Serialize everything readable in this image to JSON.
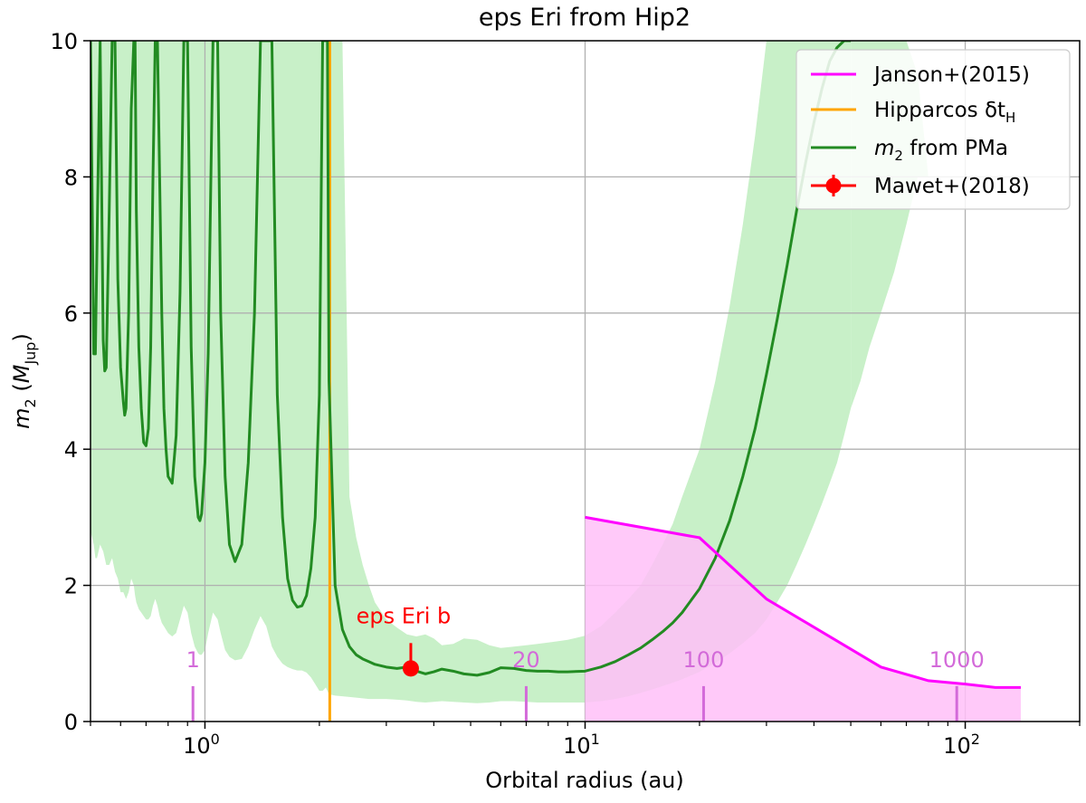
{
  "chart_data": {
    "type": "line",
    "title": "eps Eri from Hip2",
    "xlabel": "Orbital radius (au)",
    "ylabel": {
      "base": "m",
      "sub": "2",
      "paren_open": " (",
      "M": "M",
      "M_sub": "Jup",
      "paren_close": ")"
    },
    "xscale": "log",
    "xlim": [
      0.5,
      200
    ],
    "ylim": [
      0,
      10
    ],
    "grid": true,
    "legend_position": "top-right",
    "x_ticks": [
      {
        "pos": 1,
        "base": "10",
        "exp": "0"
      },
      {
        "pos": 10,
        "base": "10",
        "exp": "1"
      },
      {
        "pos": 100,
        "base": "10",
        "exp": "2"
      }
    ],
    "y_ticks": [
      "0",
      "2",
      "4",
      "6",
      "8",
      "10"
    ],
    "legend": [
      {
        "key": "janson",
        "text": "Janson+(2015)"
      },
      {
        "key": "hip",
        "text": "Hipparcos δt",
        "sub": "H"
      },
      {
        "key": "pma",
        "pre": "m",
        "sub": "2",
        "text": " from PMa"
      },
      {
        "key": "mawet",
        "text": "Mawet+(2018)"
      }
    ],
    "colors": {
      "pma": "#228b22",
      "band": "#c8f0c8",
      "janson": "#ff00ff",
      "janson_fill": "#ffbff8",
      "hipparcos": "#ffa500",
      "mawet": "#ff0000",
      "period": "#d36ad9",
      "grid": "#b0b0b0"
    },
    "series": [
      {
        "name": "m2 from PMa",
        "key": "pma",
        "x": [
          0.5,
          0.51,
          0.515,
          0.52,
          0.53,
          0.54,
          0.545,
          0.55,
          0.56,
          0.57,
          0.58,
          0.59,
          0.6,
          0.61,
          0.615,
          0.62,
          0.63,
          0.64,
          0.65,
          0.655,
          0.66,
          0.67,
          0.68,
          0.69,
          0.7,
          0.71,
          0.72,
          0.73,
          0.74,
          0.75,
          0.76,
          0.77,
          0.78,
          0.79,
          0.8,
          0.82,
          0.84,
          0.86,
          0.88,
          0.9,
          0.92,
          0.94,
          0.96,
          0.97,
          0.98,
          1.0,
          1.02,
          1.05,
          1.08,
          1.1,
          1.13,
          1.16,
          1.2,
          1.25,
          1.3,
          1.35,
          1.4,
          1.45,
          1.5,
          1.55,
          1.6,
          1.65,
          1.7,
          1.75,
          1.8,
          1.85,
          1.9,
          1.95,
          2.0,
          2.04,
          2.08,
          2.1,
          2.12,
          2.2,
          2.3,
          2.4,
          2.5,
          2.6,
          2.7,
          2.8,
          3.0,
          3.2,
          3.4,
          3.6,
          3.8,
          4.0,
          4.2,
          4.5,
          4.8,
          5.2,
          5.6,
          6.0,
          6.5,
          7.0,
          7.5,
          8.0,
          8.5,
          9.0,
          10,
          11,
          12,
          13,
          14,
          15,
          16,
          17,
          18,
          20,
          22,
          24,
          26,
          28,
          30,
          32,
          34,
          36,
          38,
          40,
          42,
          44,
          46,
          48,
          50
        ],
        "y": [
          10,
          5.4,
          5.4,
          7,
          10,
          5.6,
          5.15,
          5.2,
          7.5,
          10,
          10,
          6.5,
          5.2,
          4.7,
          4.5,
          4.6,
          6,
          9,
          10,
          10,
          7.5,
          5.5,
          4.6,
          4.1,
          4.05,
          4.3,
          5.5,
          8,
          10,
          10,
          8,
          6,
          4.6,
          4.0,
          3.6,
          3.5,
          4.2,
          6.3,
          10,
          10,
          5.5,
          3.6,
          3.0,
          2.95,
          3.05,
          3.8,
          5.4,
          10,
          10,
          6.0,
          3.6,
          2.6,
          2.35,
          2.6,
          3.8,
          6.0,
          10,
          10,
          10,
          4.8,
          3.0,
          2.1,
          1.78,
          1.68,
          1.7,
          1.85,
          2.25,
          3.0,
          4.8,
          10,
          10,
          10,
          5.0,
          2.0,
          1.35,
          1.1,
          0.98,
          0.92,
          0.88,
          0.84,
          0.8,
          0.78,
          0.8,
          0.74,
          0.7,
          0.73,
          0.77,
          0.74,
          0.7,
          0.68,
          0.72,
          0.79,
          0.78,
          0.75,
          0.74,
          0.74,
          0.73,
          0.73,
          0.74,
          0.8,
          0.88,
          0.98,
          1.08,
          1.2,
          1.32,
          1.45,
          1.6,
          1.95,
          2.4,
          2.95,
          3.6,
          4.3,
          5.1,
          5.9,
          6.7,
          7.5,
          8.2,
          8.8,
          9.3,
          9.7,
          9.9,
          10,
          10
        ],
        "band_upper": [
          10,
          10,
          10,
          10,
          10,
          10,
          10,
          10,
          10,
          10,
          10,
          10,
          10,
          10,
          10,
          10,
          10,
          10,
          10,
          10,
          10,
          10,
          10,
          10,
          10,
          10,
          10,
          10,
          10,
          10,
          10,
          10,
          10,
          10,
          10,
          10,
          10,
          10,
          10,
          10,
          10,
          10,
          10,
          10,
          10,
          10,
          10,
          10,
          10,
          10,
          10,
          10,
          10,
          10,
          10,
          10,
          10,
          10,
          10,
          10,
          10,
          10,
          10,
          10,
          10,
          10,
          10,
          10,
          10,
          10,
          10,
          10,
          10,
          10,
          10,
          3.3,
          2.7,
          2.3,
          2.0,
          1.75,
          1.5,
          1.38,
          1.28,
          1.25,
          1.28,
          1.22,
          1.12,
          1.14,
          1.22,
          1.2,
          1.12,
          1.08,
          1.1,
          1.12,
          1.14,
          1.16,
          1.18,
          1.2,
          1.26,
          1.4,
          1.6,
          1.8,
          2.0,
          2.3,
          2.6,
          2.9,
          3.3,
          4.0,
          5.0,
          6.1,
          7.3,
          8.6,
          10,
          10,
          10,
          10,
          10,
          10,
          10,
          10,
          10,
          10,
          10
        ],
        "band_lower": [
          2.8,
          2.6,
          2.4,
          2.4,
          2.6,
          2.5,
          2.4,
          2.3,
          2.3,
          2.4,
          2.2,
          2.1,
          1.9,
          1.9,
          1.85,
          1.8,
          1.9,
          2.1,
          2.0,
          1.85,
          1.75,
          1.65,
          1.6,
          1.55,
          1.5,
          1.5,
          1.55,
          1.7,
          1.8,
          1.7,
          1.55,
          1.45,
          1.4,
          1.35,
          1.3,
          1.25,
          1.3,
          1.5,
          1.7,
          1.6,
          1.3,
          1.1,
          1.0,
          0.98,
          0.98,
          1.05,
          1.3,
          1.6,
          1.5,
          1.3,
          1.05,
          0.95,
          0.9,
          0.92,
          1.1,
          1.35,
          1.55,
          1.4,
          1.1,
          0.95,
          0.85,
          0.8,
          0.77,
          0.75,
          0.75,
          0.72,
          0.65,
          0.55,
          0.45,
          0.45,
          0.5,
          0.45,
          0.4,
          0.38,
          0.37,
          0.36,
          0.35,
          0.34,
          0.33,
          0.33,
          0.33,
          0.32,
          0.31,
          0.29,
          0.28,
          0.29,
          0.3,
          0.29,
          0.28,
          0.27,
          0.28,
          0.3,
          0.3,
          0.29,
          0.28,
          0.28,
          0.28,
          0.28,
          0.28,
          0.3,
          0.33,
          0.37,
          0.42,
          0.47,
          0.52,
          0.57,
          0.62,
          0.73,
          0.86,
          1.0,
          1.15,
          1.3,
          1.5,
          1.75,
          2.0,
          2.3,
          2.6,
          2.9,
          3.2,
          3.5,
          3.8,
          4.2,
          4.6
        ]
      },
      {
        "name": "Janson+(2015)",
        "key": "janson",
        "x": [
          10,
          20,
          30,
          60,
          80,
          100,
          120,
          140
        ],
        "y": [
          3.0,
          2.7,
          1.8,
          0.8,
          0.6,
          0.55,
          0.5,
          0.5
        ]
      }
    ],
    "band_extra": {
      "x": [
        50,
        53,
        56,
        60,
        65,
        70,
        75,
        80
      ],
      "upper": [
        10,
        10,
        10,
        10,
        10,
        10,
        9.5,
        8.0
      ],
      "lower": [
        4.6,
        5.0,
        5.5,
        6.0,
        6.6,
        7.3,
        8.0,
        8.0
      ]
    },
    "hipparcos_x": 2.13,
    "mawet": {
      "x": 3.48,
      "y": 0.78,
      "yerr": 0.05,
      "label": "eps Eri b"
    },
    "period_ticks": [
      {
        "label": "1",
        "x": 0.93
      },
      {
        "label": "20",
        "x": 7.0
      },
      {
        "label": "100",
        "x": 20.5
      },
      {
        "label": "1000",
        "x": 95
      }
    ]
  }
}
